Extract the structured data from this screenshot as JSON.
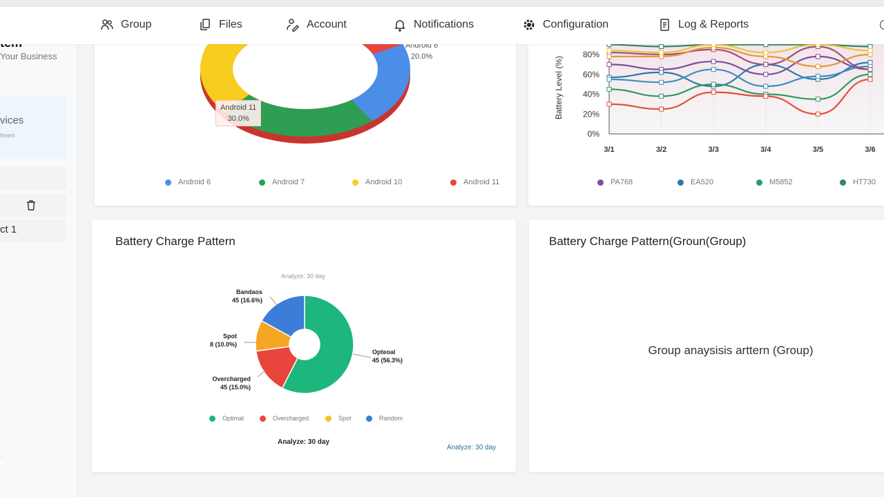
{
  "nav": {
    "items": [
      {
        "label": "Group",
        "icon": "users-icon"
      },
      {
        "label": "Files",
        "icon": "files-icon"
      },
      {
        "label": "Account",
        "icon": "account-edit-icon"
      },
      {
        "label": "Notifications",
        "icon": "bell-icon"
      },
      {
        "label": "Configuration",
        "icon": "gear-icon"
      },
      {
        "label": "Log & Reports",
        "icon": "scroll-report-icon"
      }
    ]
  },
  "sidebar": {
    "brand_title": "tem",
    "brand_sub": "Your Business",
    "active_item": "vices",
    "active_sub": "llment",
    "item_project": "ct 1",
    "footer": "..."
  },
  "cards": {
    "os": {
      "legend": [
        "Android 6",
        "Android 7",
        "Android 10",
        "Android 11"
      ],
      "label_a6": "Android 6",
      "label_a6_pct": "20.0%",
      "label_a11": "Android 11",
      "label_a11_pct": "30.0%"
    },
    "battery": {
      "ylabel": "Battery Level (%)"
    },
    "charge": {
      "title": "Battery Charge Pattern",
      "subtitle": "Analyze: 30 day",
      "footer_center": "Analyze: 30 day",
      "footer_right": "Analyze: 30 day",
      "labels": [
        {
          "name": "Opteoal",
          "value": "45 (56.3%)"
        },
        {
          "name": "Overcharged",
          "value": "45 (15.0%)"
        },
        {
          "name": "Spot",
          "value": "8 (10.0%)"
        },
        {
          "name": "Bandaos",
          "value": "45 (16.6%)"
        }
      ]
    },
    "group": {
      "title": "Battery Charge Pattern(Groun(Group)",
      "placeholder": "Group anaysisis arttern (Group)"
    }
  },
  "colors": {
    "green": "#1db67d",
    "red": "#e8453c",
    "orange": "#f5a623",
    "blue": "#3b7dd8",
    "yellow": "#f7cd1f",
    "accent_text": "#2b6f8f"
  },
  "chart_data": [
    {
      "type": "pie",
      "style": "3d-donut",
      "categories": [
        "Android 6",
        "Android 7",
        "Android 10",
        "Android 11"
      ],
      "values": [
        20,
        25,
        25,
        30
      ],
      "colors": [
        "#4a8ee8",
        "#2e9e52",
        "#f7cd1f",
        "#e8453c"
      ],
      "legend": "bottom"
    },
    {
      "type": "line",
      "ylabel": "Battery Level (%)",
      "x": [
        "3/1",
        "3/2",
        "3/3",
        "3/4",
        "3/5",
        "3/6"
      ],
      "yticks": [
        "0%",
        "20%",
        "40%",
        "60%",
        "80%"
      ],
      "ylim": [
        0,
        100
      ],
      "grid": true,
      "legend": "bottom",
      "series": [
        {
          "name": "PA768",
          "color": "#7b4f9a",
          "values": [
            70,
            65,
            73,
            60,
            78,
            65
          ]
        },
        {
          "name": "EA520",
          "color": "#2f77a8",
          "values": [
            57,
            62,
            48,
            70,
            55,
            72
          ]
        },
        {
          "name": "M5852",
          "color": "#2e9a63",
          "values": [
            45,
            38,
            50,
            40,
            35,
            60
          ]
        },
        {
          "name": "HT730",
          "color": "#2e8a5a",
          "values": [
            90,
            88,
            90,
            90,
            90,
            88
          ]
        },
        {
          "color": "#e0503a",
          "values": [
            30,
            25,
            42,
            38,
            20,
            55
          ]
        },
        {
          "color": "#3d8fc0",
          "values": [
            55,
            52,
            65,
            48,
            58,
            68
          ]
        },
        {
          "color": "#9a4f7a",
          "values": [
            82,
            80,
            85,
            70,
            88,
            65
          ]
        },
        {
          "color": "#e8963a",
          "values": [
            78,
            78,
            87,
            78,
            68,
            80
          ]
        },
        {
          "color": "#e8c43a",
          "values": [
            84,
            82,
            90,
            82,
            90,
            84
          ]
        }
      ]
    },
    {
      "type": "pie",
      "style": "donut",
      "categories": [
        "Optimal",
        "Overcharged",
        "Spot",
        "Random"
      ],
      "values": [
        56.3,
        15.0,
        10.0,
        16.6
      ],
      "colors": [
        "#1db67d",
        "#e8453c",
        "#f5a623",
        "#3b7dd8"
      ],
      "legend": "bottom"
    }
  ]
}
